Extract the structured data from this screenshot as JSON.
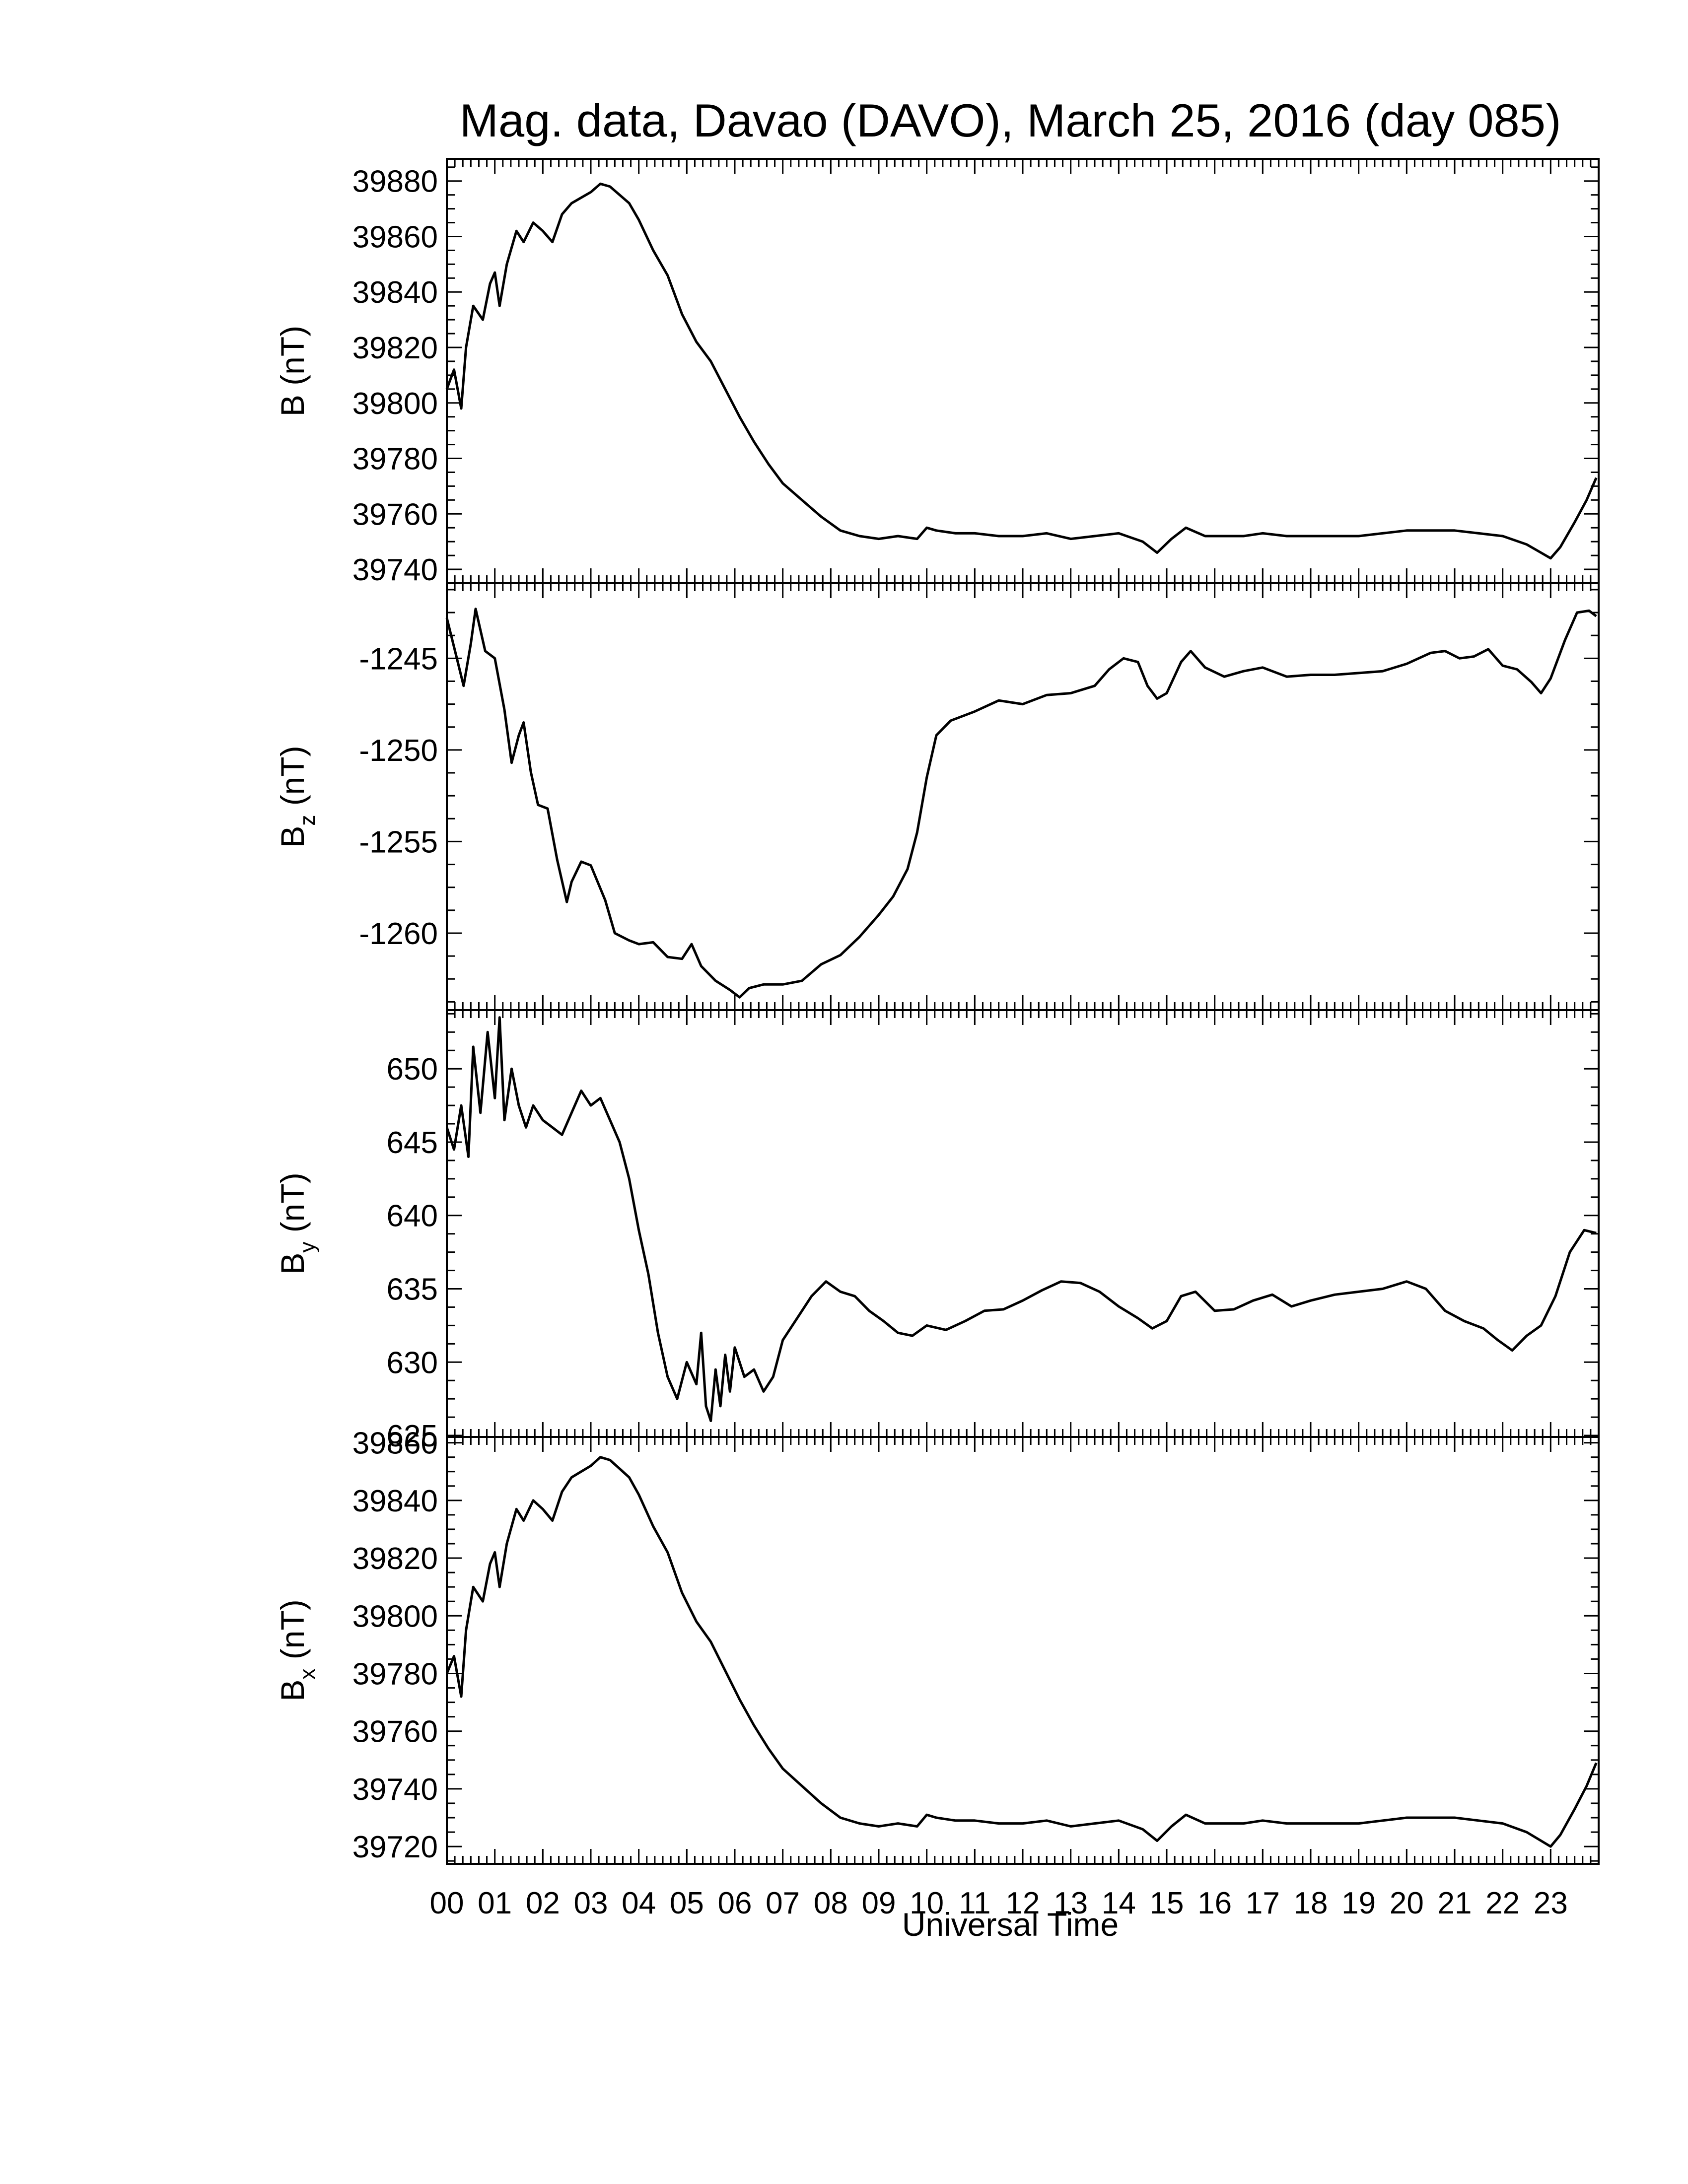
{
  "title": "Mag. data, Davao (DAVO), March 25, 2016 (day 085)",
  "chart_data": [
    {
      "type": "line",
      "id": "B",
      "ylabel": "B (nT)",
      "ylabel_main": "B",
      "ylabel_sub": "",
      "ylabel_unit": "(nT)",
      "ylim": [
        39735,
        39888
      ],
      "yticks": [
        39740,
        39760,
        39780,
        39800,
        39820,
        39840,
        39860,
        39880
      ],
      "x_hours": [
        0.0,
        0.15,
        0.3,
        0.4,
        0.55,
        0.75,
        0.9,
        1.0,
        1.1,
        1.25,
        1.45,
        1.6,
        1.8,
        2.0,
        2.2,
        2.4,
        2.6,
        2.8,
        3.0,
        3.2,
        3.4,
        3.6,
        3.8,
        4.0,
        4.3,
        4.6,
        4.9,
        5.2,
        5.5,
        5.8,
        6.1,
        6.4,
        6.7,
        7.0,
        7.4,
        7.8,
        8.2,
        8.6,
        9.0,
        9.4,
        9.8,
        10.0,
        10.2,
        10.6,
        11.0,
        11.5,
        12.0,
        12.5,
        13.0,
        13.5,
        14.0,
        14.5,
        14.8,
        15.1,
        15.4,
        15.8,
        16.2,
        16.6,
        17.0,
        17.5,
        18.0,
        18.5,
        19.0,
        19.5,
        20.0,
        20.5,
        21.0,
        21.5,
        22.0,
        22.5,
        22.8,
        23.0,
        23.2,
        23.5,
        23.75,
        23.95
      ],
      "values": [
        39805,
        39812,
        39798,
        39820,
        39835,
        39830,
        39843,
        39847,
        39835,
        39850,
        39862,
        39858,
        39865,
        39862,
        39858,
        39868,
        39872,
        39874,
        39876,
        39879,
        39878,
        39875,
        39872,
        39866,
        39855,
        39846,
        39832,
        39822,
        39815,
        39805,
        39795,
        39786,
        39778,
        39771,
        39765,
        39759,
        39754,
        39752,
        39751,
        39752,
        39751,
        39755,
        39754,
        39753,
        39753,
        39752,
        39752,
        39753,
        39751,
        39752,
        39753,
        39750,
        39746,
        39751,
        39755,
        39752,
        39752,
        39752,
        39753,
        39752,
        39752,
        39752,
        39752,
        39753,
        39754,
        39754,
        39754,
        39753,
        39752,
        39749,
        39746,
        39744,
        39748,
        39757,
        39765,
        39773
      ]
    },
    {
      "type": "line",
      "id": "Bz",
      "ylabel": "Bz (nT)",
      "ylabel_main": "B",
      "ylabel_sub": "z",
      "ylabel_unit": "(nT)",
      "ylim": [
        -1264.2,
        -1240.9
      ],
      "yticks": [
        -1245,
        -1250,
        -1255,
        -1260
      ],
      "x_hours": [
        0.0,
        0.2,
        0.35,
        0.5,
        0.6,
        0.8,
        1.0,
        1.2,
        1.35,
        1.5,
        1.6,
        1.75,
        1.9,
        2.1,
        2.3,
        2.5,
        2.6,
        2.8,
        3.0,
        3.3,
        3.5,
        3.8,
        4.0,
        4.3,
        4.6,
        4.9,
        5.1,
        5.3,
        5.6,
        5.9,
        6.1,
        6.3,
        6.6,
        7.0,
        7.4,
        7.8,
        8.2,
        8.6,
        9.0,
        9.3,
        9.6,
        9.8,
        10.0,
        10.2,
        10.5,
        11.0,
        11.5,
        12.0,
        12.5,
        13.0,
        13.5,
        13.8,
        14.1,
        14.4,
        14.6,
        14.8,
        15.0,
        15.3,
        15.5,
        15.8,
        16.2,
        16.6,
        17.0,
        17.5,
        18.0,
        18.5,
        19.0,
        19.5,
        20.0,
        20.5,
        20.8,
        21.1,
        21.4,
        21.7,
        22.0,
        22.3,
        22.6,
        22.8,
        23.0,
        23.3,
        23.55,
        23.8,
        23.95
      ],
      "values": [
        -1242.8,
        -1244.9,
        -1246.5,
        -1244.2,
        -1242.3,
        -1244.6,
        -1245.0,
        -1247.8,
        -1250.7,
        -1249.2,
        -1248.5,
        -1251.2,
        -1253.0,
        -1253.2,
        -1256.0,
        -1258.3,
        -1257.2,
        -1256.1,
        -1256.3,
        -1258.2,
        -1260.0,
        -1260.4,
        -1260.6,
        -1260.5,
        -1261.3,
        -1261.4,
        -1260.6,
        -1261.8,
        -1262.6,
        -1263.1,
        -1263.5,
        -1263.0,
        -1262.8,
        -1262.8,
        -1262.6,
        -1261.7,
        -1261.2,
        -1260.2,
        -1259.0,
        -1258.0,
        -1256.5,
        -1254.5,
        -1251.5,
        -1249.2,
        -1248.4,
        -1247.9,
        -1247.3,
        -1247.5,
        -1247.0,
        -1246.9,
        -1246.5,
        -1245.6,
        -1245.0,
        -1245.2,
        -1246.5,
        -1247.2,
        -1246.9,
        -1245.2,
        -1244.6,
        -1245.5,
        -1246.0,
        -1245.7,
        -1245.5,
        -1246.0,
        -1245.9,
        -1245.9,
        -1245.8,
        -1245.7,
        -1245.3,
        -1244.7,
        -1244.6,
        -1245.0,
        -1244.9,
        -1244.5,
        -1245.4,
        -1245.6,
        -1246.3,
        -1246.9,
        -1246.1,
        -1244.0,
        -1242.5,
        -1242.4,
        -1242.7
      ]
    },
    {
      "type": "line",
      "id": "By",
      "ylabel": "By (nT)",
      "ylabel_main": "B",
      "ylabel_sub": "y",
      "ylabel_unit": "(nT)",
      "ylim": [
        624.9,
        654.0
      ],
      "yticks": [
        625,
        630,
        635,
        640,
        645,
        650
      ],
      "x_hours": [
        0.0,
        0.15,
        0.3,
        0.45,
        0.55,
        0.7,
        0.85,
        1.0,
        1.1,
        1.2,
        1.35,
        1.5,
        1.65,
        1.8,
        2.0,
        2.2,
        2.4,
        2.6,
        2.8,
        3.0,
        3.2,
        3.4,
        3.6,
        3.8,
        4.0,
        4.2,
        4.4,
        4.6,
        4.8,
        5.0,
        5.2,
        5.3,
        5.4,
        5.5,
        5.6,
        5.7,
        5.8,
        5.9,
        6.0,
        6.2,
        6.4,
        6.6,
        6.8,
        7.0,
        7.3,
        7.6,
        7.9,
        8.2,
        8.5,
        8.8,
        9.1,
        9.4,
        9.7,
        10.0,
        10.4,
        10.8,
        11.2,
        11.6,
        12.0,
        12.4,
        12.8,
        13.2,
        13.6,
        14.0,
        14.4,
        14.7,
        15.0,
        15.3,
        15.6,
        16.0,
        16.4,
        16.8,
        17.2,
        17.6,
        18.0,
        18.5,
        19.0,
        19.5,
        20.0,
        20.4,
        20.8,
        21.2,
        21.6,
        21.9,
        22.2,
        22.5,
        22.8,
        23.1,
        23.4,
        23.7,
        23.95
      ],
      "values": [
        646.0,
        644.5,
        647.5,
        644.0,
        651.5,
        647.0,
        652.5,
        648.0,
        653.5,
        646.5,
        650.0,
        647.5,
        646.0,
        647.5,
        646.5,
        646.0,
        645.5,
        647.0,
        648.5,
        647.5,
        648.0,
        646.5,
        645.0,
        642.5,
        639.0,
        636.0,
        632.0,
        629.0,
        627.5,
        630.0,
        628.5,
        632.0,
        627.0,
        626.0,
        629.5,
        627.0,
        630.5,
        628.0,
        631.0,
        629.0,
        629.5,
        628.0,
        629.0,
        631.5,
        633.0,
        634.5,
        635.5,
        634.8,
        634.5,
        633.5,
        632.8,
        632.0,
        631.8,
        632.5,
        632.2,
        632.8,
        633.5,
        633.6,
        634.2,
        634.9,
        635.5,
        635.4,
        634.8,
        633.8,
        633.0,
        632.3,
        632.8,
        634.5,
        634.8,
        633.5,
        633.6,
        634.2,
        634.6,
        633.8,
        634.2,
        634.6,
        634.8,
        635.0,
        635.5,
        635.0,
        633.5,
        632.8,
        632.3,
        631.5,
        630.8,
        631.8,
        632.5,
        634.5,
        637.5,
        639.0,
        638.8
      ]
    },
    {
      "type": "line",
      "id": "Bx",
      "ylabel": "Bx (nT)",
      "ylabel_main": "B",
      "ylabel_sub": "x",
      "ylabel_unit": "(nT)",
      "ylim": [
        39714,
        39862
      ],
      "yticks": [
        39720,
        39740,
        39760,
        39780,
        39800,
        39820,
        39840,
        39860
      ],
      "x_hours": [
        0.0,
        0.15,
        0.3,
        0.4,
        0.55,
        0.75,
        0.9,
        1.0,
        1.1,
        1.25,
        1.45,
        1.6,
        1.8,
        2.0,
        2.2,
        2.4,
        2.6,
        2.8,
        3.0,
        3.2,
        3.4,
        3.6,
        3.8,
        4.0,
        4.3,
        4.6,
        4.9,
        5.2,
        5.5,
        5.8,
        6.1,
        6.4,
        6.7,
        7.0,
        7.4,
        7.8,
        8.2,
        8.6,
        9.0,
        9.4,
        9.8,
        10.0,
        10.2,
        10.6,
        11.0,
        11.5,
        12.0,
        12.5,
        13.0,
        13.5,
        14.0,
        14.5,
        14.8,
        15.1,
        15.4,
        15.8,
        16.2,
        16.6,
        17.0,
        17.5,
        18.0,
        18.5,
        19.0,
        19.5,
        20.0,
        20.5,
        21.0,
        21.5,
        22.0,
        22.5,
        22.8,
        23.0,
        23.2,
        23.5,
        23.75,
        23.95
      ],
      "values": [
        39780,
        39786,
        39772,
        39795,
        39810,
        39805,
        39818,
        39822,
        39810,
        39825,
        39837,
        39833,
        39840,
        39837,
        39833,
        39843,
        39848,
        39850,
        39852,
        39855,
        39854,
        39851,
        39848,
        39842,
        39831,
        39822,
        39808,
        39798,
        39791,
        39781,
        39771,
        39762,
        39754,
        39747,
        39741,
        39735,
        39730,
        39728,
        39727,
        39728,
        39727,
        39731,
        39730,
        39729,
        39729,
        39728,
        39728,
        39729,
        39727,
        39728,
        39729,
        39726,
        39722,
        39727,
        39731,
        39728,
        39728,
        39728,
        39729,
        39728,
        39728,
        39728,
        39728,
        39729,
        39730,
        39730,
        39730,
        39729,
        39728,
        39725,
        39722,
        39720,
        39724,
        39733,
        39741,
        39749
      ]
    }
  ],
  "xaxis": {
    "label": "Universal Time",
    "xlim": [
      0,
      24
    ],
    "tick_labels": [
      "00",
      "01",
      "02",
      "03",
      "04",
      "05",
      "06",
      "07",
      "08",
      "09",
      "10",
      "11",
      "12",
      "13",
      "14",
      "15",
      "16",
      "17",
      "18",
      "19",
      "20",
      "21",
      "22",
      "23"
    ]
  }
}
